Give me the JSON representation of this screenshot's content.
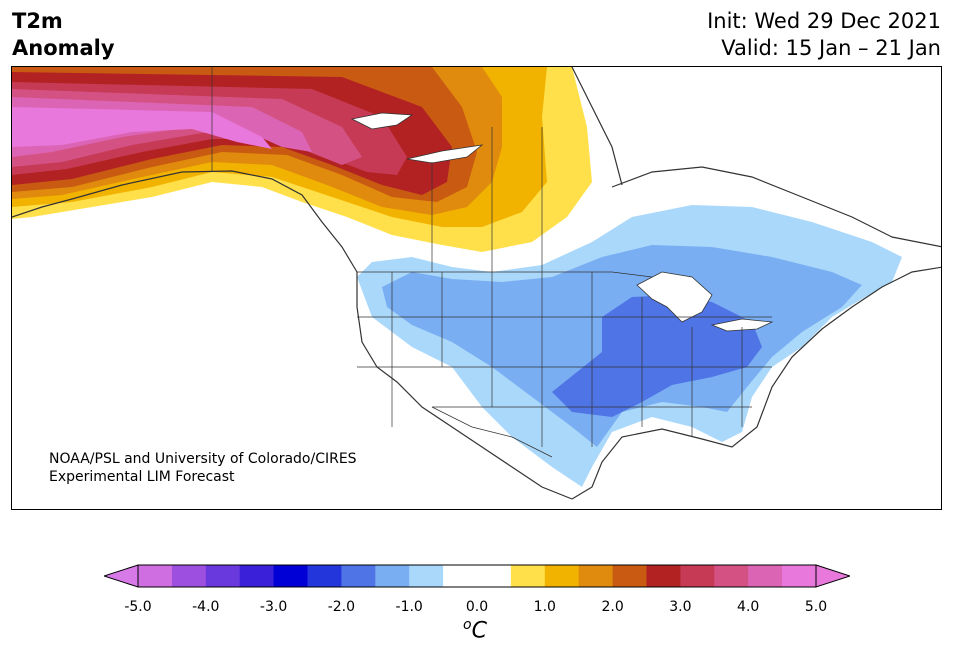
{
  "title": {
    "left_line1": "T2m",
    "left_line2": "Anomaly",
    "init": "Init: Wed 29 Dec 2021",
    "valid": "Valid: 15 Jan – 21 Jan"
  },
  "credit": {
    "line1": "NOAA/PSL and University of Colorado/CIRES",
    "line2": "Experimental LIM Forecast"
  },
  "map": {
    "region": "North America",
    "anomaly_regions": [
      {
        "area": "Alaska / Yukon",
        "level_max": 5.0,
        "color": "#e878dc"
      },
      {
        "area": "British Columbia / Alberta / Saskatchewan",
        "level_max": 3.0,
        "color": "#b22222"
      },
      {
        "area": "Northern Prairies",
        "level_max": 1.0,
        "color": "#f5b800"
      },
      {
        "area": "Ohio Valley / Southern Plains",
        "level_min": -2.0,
        "color": "#4f74e6"
      },
      {
        "area": "Great Lakes / Northeast / Quebec",
        "level_min": -1.0,
        "color": "#a9d8fb"
      }
    ]
  },
  "colorbar": {
    "colors": [
      "#cf6ee0",
      "#9d4fe0",
      "#6a39de",
      "#3a20d8",
      "#0000d6",
      "#2236dc",
      "#4f74e6",
      "#7aaef2",
      "#aad8fb",
      "#ffffff",
      "#ffffff",
      "#ffe04a",
      "#f2b300",
      "#e08a0e",
      "#c95a12",
      "#b32222",
      "#c63a55",
      "#d45283",
      "#dc64b4",
      "#e878dc"
    ],
    "extend_low": "#d77ae8",
    "extend_high": "#e878dc",
    "ticks": [
      "-5.0",
      "-4.0",
      "-3.0",
      "-2.0",
      "-1.0",
      "0.0",
      "1.0",
      "2.0",
      "3.0",
      "4.0",
      "5.0"
    ],
    "units_base": "C",
    "units_sup": "o"
  }
}
